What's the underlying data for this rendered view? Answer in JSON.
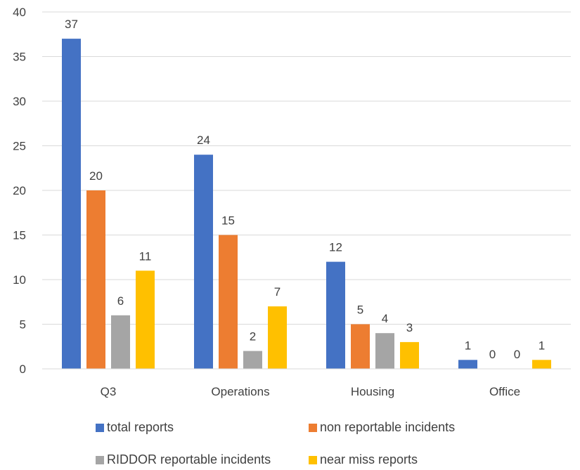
{
  "chart_data": {
    "type": "bar",
    "categories": [
      "Q3",
      "Operations",
      "Housing",
      "Office"
    ],
    "series": [
      {
        "name": "total reports",
        "color": "#4472C4",
        "values": [
          37,
          24,
          12,
          1
        ]
      },
      {
        "name": "non reportable incidents",
        "color": "#ED7D31",
        "values": [
          20,
          15,
          5,
          0
        ]
      },
      {
        "name": "RIDDOR reportable incidents",
        "color": "#A5A5A5",
        "values": [
          6,
          2,
          4,
          0
        ]
      },
      {
        "name": "near miss reports",
        "color": "#FFC000",
        "values": [
          11,
          7,
          3,
          1
        ]
      }
    ],
    "ylim": [
      0,
      40
    ],
    "yticks": [
      0,
      5,
      10,
      15,
      20,
      25,
      30,
      35,
      40
    ],
    "grid": true,
    "legend_position": "bottom",
    "data_labels": true
  }
}
